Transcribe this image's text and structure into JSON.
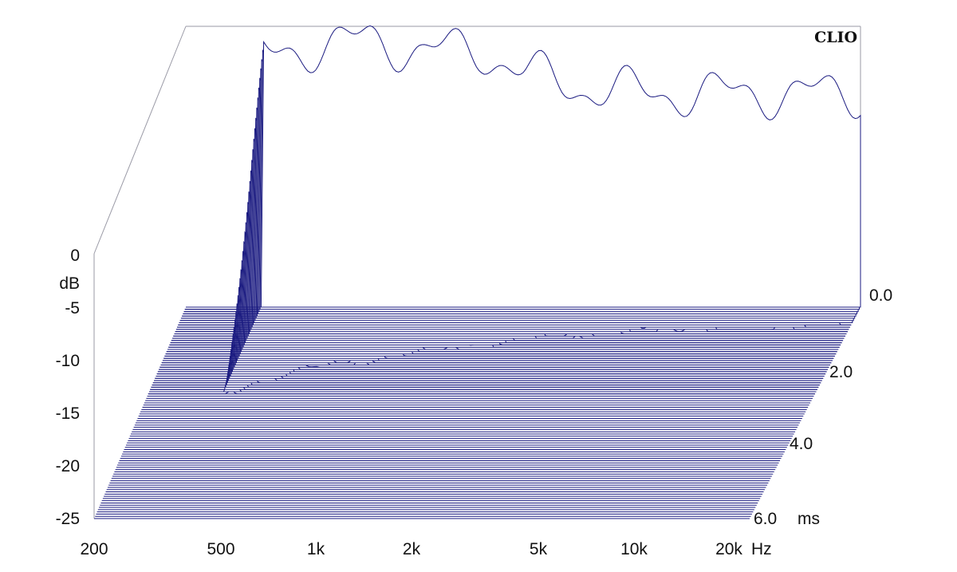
{
  "chart_data": {
    "type": "waterfall",
    "brand": "CLIO",
    "y_label": "dB",
    "y_ticks": [
      "0",
      "-5",
      "-10",
      "-15",
      "-20",
      "-25"
    ],
    "y_range": [
      -25,
      0
    ],
    "x_ticks": [
      "200",
      "500",
      "1k",
      "2k",
      "5k",
      "10k",
      "20k"
    ],
    "x_unit": "Hz",
    "x_range": [
      200,
      20000
    ],
    "x_scale": "log",
    "z_ticks": [
      "0.0",
      "2.0",
      "4.0",
      "6.0"
    ],
    "z_unit": "ms",
    "z_range": [
      0,
      6.0
    ],
    "colors": {
      "trace": "#1a1a80",
      "frame": "#9a9aa6"
    },
    "initial_response_db": [
      {
        "f": 350,
        "db": -1.5
      },
      {
        "f": 500,
        "db": -0.5
      },
      {
        "f": 700,
        "db": 0
      },
      {
        "f": 1000,
        "db": -1
      },
      {
        "f": 1500,
        "db": -1
      },
      {
        "f": 2000,
        "db": -3
      },
      {
        "f": 3000,
        "db": -4.5
      },
      {
        "f": 5000,
        "db": -5
      },
      {
        "f": 10000,
        "db": -5
      },
      {
        "f": 20000,
        "db": -5
      }
    ]
  }
}
